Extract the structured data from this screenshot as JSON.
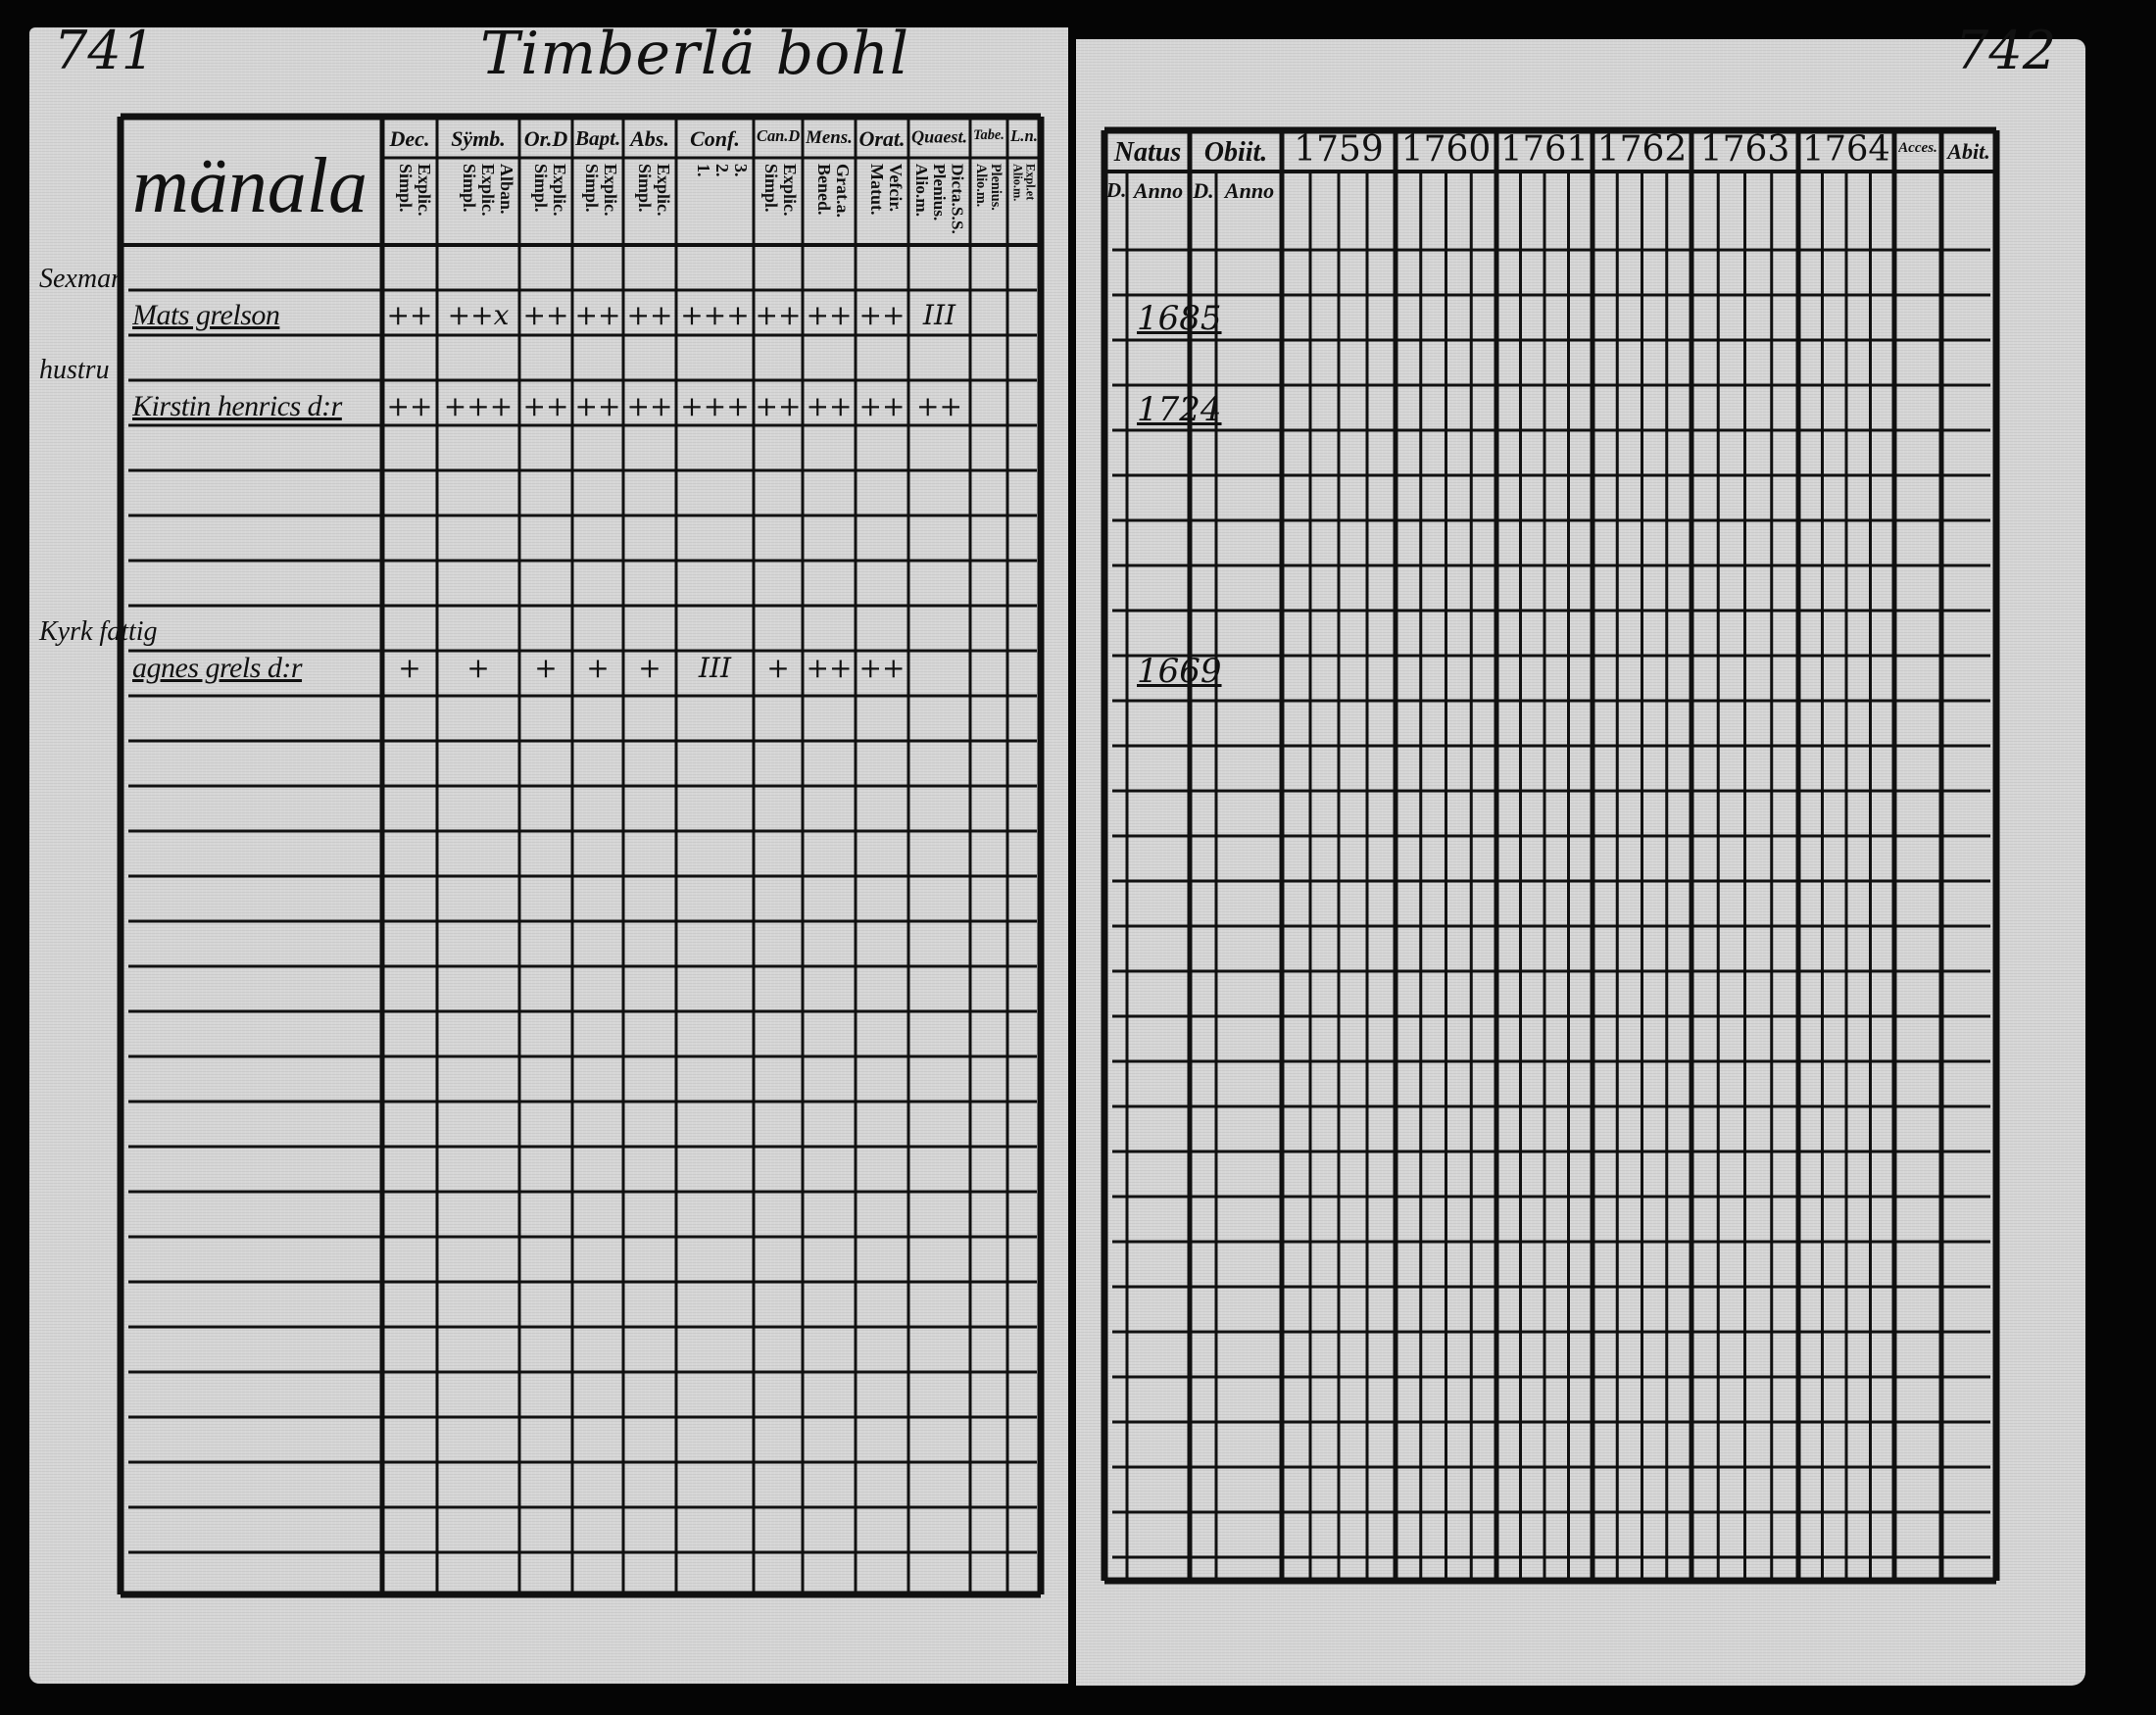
{
  "left_page": {
    "page_number": "741",
    "title": "Timberlä bohl",
    "section": "mänala",
    "columns": [
      {
        "head": "Dec.",
        "sub": "Explic.\nSimpl."
      },
      {
        "head": "Sÿmb.",
        "sub": "Alban.\nExplic.\nSimpl."
      },
      {
        "head": "Or.D",
        "sub": "Explic.\nSimpl."
      },
      {
        "head": "Bapt.",
        "sub": "Explic.\nSimpl."
      },
      {
        "head": "Abs.",
        "sub": "Explic.\nSimpl."
      },
      {
        "head": "Conf.",
        "sub": "3.\n2.\n1."
      },
      {
        "head": "Can.D",
        "sub": "Explic.\nSimpl."
      },
      {
        "head": "Mens.",
        "sub": "Grat.a.\nBened."
      },
      {
        "head": "Orat.",
        "sub": "Vefcir.\nMatut."
      },
      {
        "head": "Quaest.",
        "sub": "Dicta.S.S.\nPlenius.\nAlio.m."
      },
      {
        "head": "Tabe.",
        "sub": "Plenius.\nAlio.m."
      },
      {
        "head": "L.n.",
        "sub": "Expl.et\nAlio.m."
      }
    ],
    "persons": [
      {
        "role": "Sexman",
        "name": "Mats grelson",
        "marks": [
          "++",
          "++x",
          "++",
          "++",
          "++",
          "+++",
          "++",
          "++",
          "++",
          "III",
          "",
          ""
        ]
      },
      {
        "role": "hustru",
        "name": "Kirstin henrics d:r",
        "marks": [
          "++",
          "+++",
          "++",
          "++",
          "++",
          "+++",
          "++",
          "++",
          "++",
          "++",
          "",
          ""
        ]
      },
      {
        "role": "Kyrk fattig",
        "name": "agnes grels d:r",
        "marks": [
          "+",
          "+",
          "+",
          "+",
          "+",
          "III",
          "+",
          "++",
          "++",
          "",
          "",
          ""
        ]
      }
    ]
  },
  "right_page": {
    "page_number": "742",
    "natus": {
      "head": "Natus",
      "day": "D.",
      "year": "Anno"
    },
    "obiit": {
      "head": "Obiit.",
      "day": "D.",
      "year": "Anno"
    },
    "years": [
      "1759",
      "1760",
      "1761",
      "1762",
      "1763",
      "1764"
    ],
    "accessit": "Acces.",
    "abiit": "Abit.",
    "births": [
      "1685",
      "1724",
      "1669"
    ]
  },
  "colors": {
    "paper": "#d6d6d6",
    "ink": "#111111",
    "background": "#050505"
  }
}
